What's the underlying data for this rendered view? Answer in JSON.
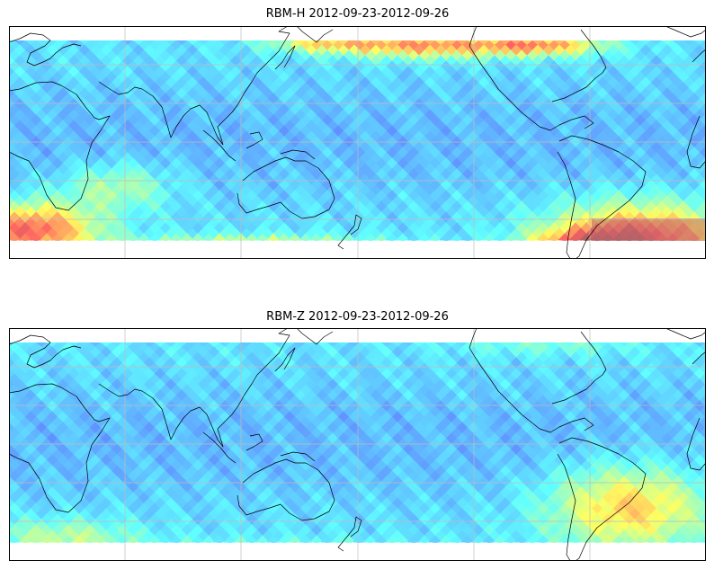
{
  "panels": [
    {
      "title": "RBM-H 2012-09-23-2012-09-26",
      "name": "rbm-h-map",
      "intensity": "high",
      "colormap": "jet"
    },
    {
      "title": "RBM-Z 2012-09-23-2012-09-26",
      "name": "rbm-z-map",
      "intensity": "low",
      "colormap": "jet"
    }
  ],
  "map": {
    "projection": "equirectangular",
    "central_longitude": 180,
    "lon_range": [
      30,
      390
    ],
    "lat_range": [
      -90,
      90
    ],
    "data_lat_range": [
      -62,
      70
    ],
    "gridlines": true,
    "coastlines": true
  }
}
